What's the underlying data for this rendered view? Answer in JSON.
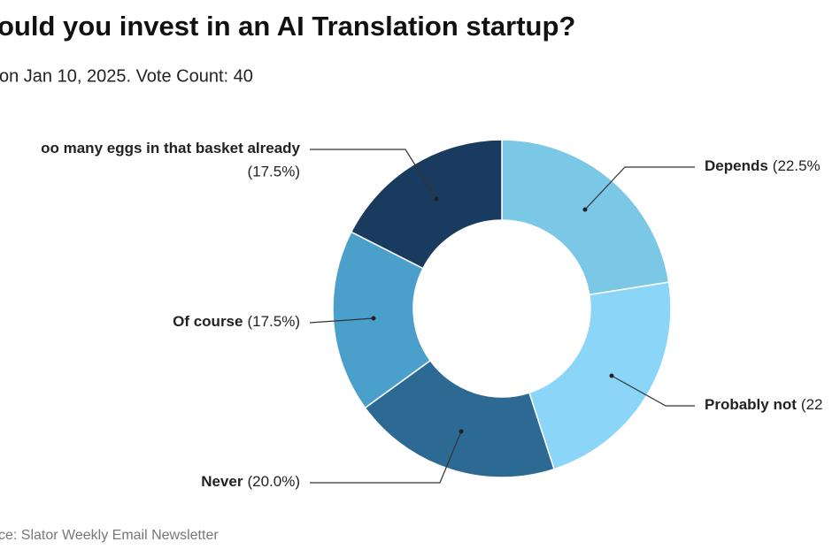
{
  "chart_data": {
    "type": "pie",
    "title": "ould you invest in an AI Translation startup?",
    "subtitle": "on Jan 10, 2025. Vote Count: 40",
    "source": "ce: Slator Weekly Email Newsletter",
    "categories": [
      "Depends",
      "Probably not",
      "Never",
      "Of course",
      "oo many eggs in that basket already"
    ],
    "values": [
      22.5,
      22.5,
      20.0,
      17.5,
      17.5
    ],
    "value_labels": [
      "(22.5%",
      "(22",
      "(20.0%)",
      "(17.5%)",
      "(17.5%)"
    ],
    "colors": [
      "#7ac7e6",
      "#8bd6f8",
      "#2d6a93",
      "#4a9fcb",
      "#183b5f"
    ]
  }
}
